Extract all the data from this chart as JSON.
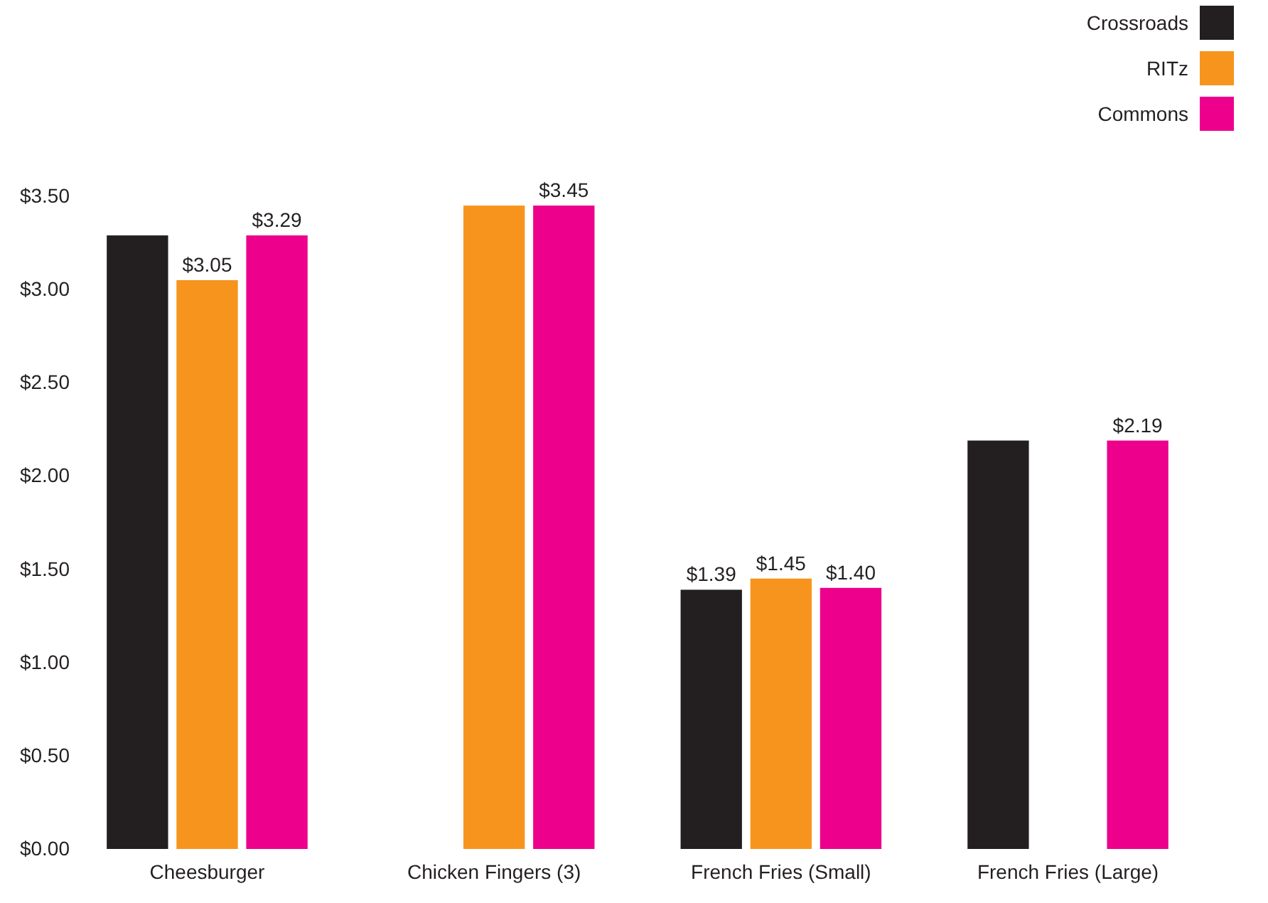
{
  "chart_data": {
    "type": "bar",
    "categories": [
      "Cheesburger",
      "Chicken Fingers (3)",
      "French Fries (Small)",
      "French Fries (Large)"
    ],
    "series": [
      {
        "name": "Crossroads",
        "color": "#231f20",
        "values": [
          3.29,
          null,
          1.39,
          2.19
        ],
        "value_labels": [
          null,
          null,
          "$1.39",
          null
        ]
      },
      {
        "name": "RITz",
        "color": "#f7941d",
        "values": [
          3.05,
          3.45,
          1.45,
          null
        ],
        "value_labels": [
          "$3.05",
          null,
          "$1.45",
          null
        ]
      },
      {
        "name": "Commons",
        "color": "#ec008c",
        "values": [
          3.29,
          3.45,
          1.4,
          2.19
        ],
        "value_labels": [
          "$3.29",
          "$3.45",
          "$1.40",
          "$2.19"
        ]
      }
    ],
    "ylim": [
      0,
      3.5
    ],
    "yticks": [
      {
        "value": 0,
        "label": "$0.00"
      },
      {
        "value": 0.5,
        "label": "$0.50"
      },
      {
        "value": 1,
        "label": "$1.00"
      },
      {
        "value": 1.5,
        "label": "$1.50"
      },
      {
        "value": 2,
        "label": "$2.00"
      },
      {
        "value": 2.5,
        "label": "$2.50"
      },
      {
        "value": 3,
        "label": "$3.00"
      },
      {
        "value": 3.5,
        "label": "$3.50"
      }
    ],
    "grid": false,
    "legend": "top right"
  }
}
